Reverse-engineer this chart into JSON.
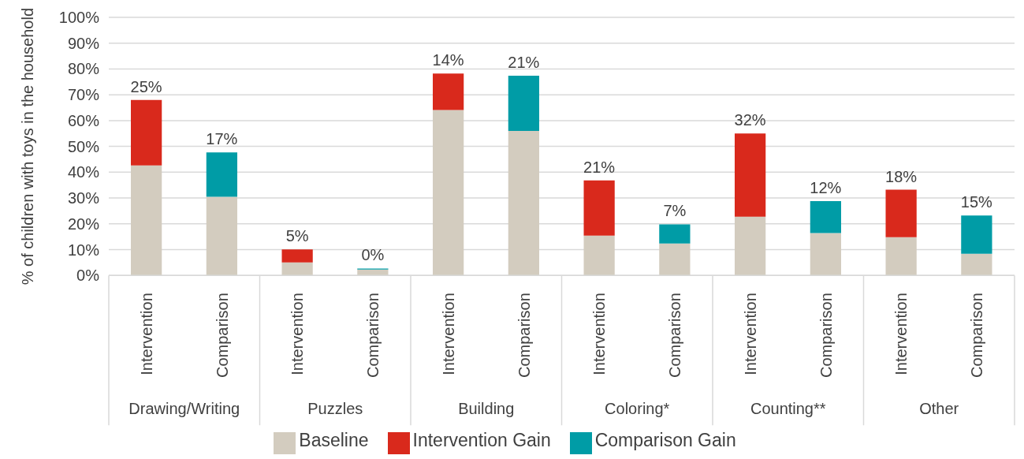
{
  "chart_data": {
    "type": "bar",
    "stacked": true,
    "ylabel": "% of children with toys in the household",
    "categories": [
      "Intervention",
      "Comparison",
      "Intervention",
      "Comparison",
      "Intervention",
      "Comparison",
      "Intervention",
      "Comparison",
      "Intervention",
      "Comparison",
      "Intervention",
      "Comparison"
    ],
    "annotations": [
      "Drawing/Writing",
      "Puzzles",
      "Building",
      "Coloring*",
      "Counting**",
      "Other"
    ],
    "series": [
      {
        "name": "Baseline",
        "color": "#d3ccbf",
        "values": [
          42.6,
          30.5,
          5,
          2.3,
          64.1,
          56,
          15.4,
          12.4,
          22.8,
          16.4,
          14.8,
          8.4
        ]
      },
      {
        "name": "Intervention Gain",
        "color": "#d9291c",
        "values": [
          25.4,
          null,
          5.1,
          null,
          14.1,
          null,
          21.4,
          null,
          32.2,
          null,
          18.4,
          null
        ],
        "value_labels": [
          "25%",
          null,
          "5%",
          null,
          "14%",
          null,
          "21%",
          null,
          "32%",
          null,
          "18%",
          null
        ]
      },
      {
        "name": "Comparison Gain",
        "color": "#009ca6",
        "values": [
          null,
          17.2,
          null,
          0.4,
          null,
          21.4,
          null,
          7.4,
          null,
          12.4,
          null,
          14.8
        ],
        "value_labels": [
          null,
          "17%",
          null,
          "0%",
          null,
          "21%",
          null,
          "7%",
          null,
          "12%",
          null,
          "15%"
        ]
      }
    ],
    "ylim": [
      0,
      100
    ],
    "yticks": [
      {
        "value": 0,
        "label": "0%"
      },
      {
        "value": 10,
        "label": "10%"
      },
      {
        "value": 20,
        "label": "20%"
      },
      {
        "value": 30,
        "label": "30%"
      },
      {
        "value": 40,
        "label": "40%"
      },
      {
        "value": 50,
        "label": "50%"
      },
      {
        "value": 60,
        "label": "60%"
      },
      {
        "value": 70,
        "label": "70%"
      },
      {
        "value": 80,
        "label": "80%"
      },
      {
        "value": 90,
        "label": "90%"
      },
      {
        "value": 100,
        "label": "100%"
      }
    ],
    "grid": "y",
    "legend": "bottom"
  }
}
